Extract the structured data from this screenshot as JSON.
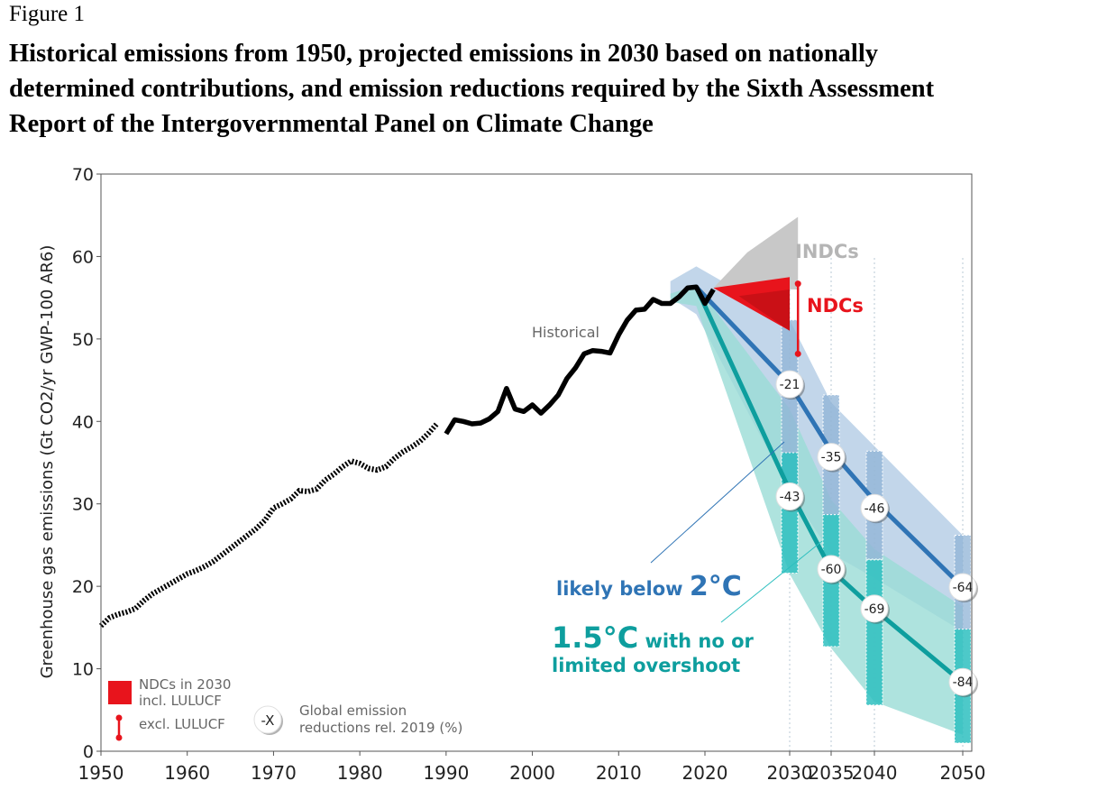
{
  "figure": {
    "label": "Figure 1",
    "title_lines": [
      "Historical emissions from 1950, projected emissions in 2030 based on nationally",
      "determined contributions, and emission reductions required by the Sixth Assessment",
      "Report of the Intergovernmental Panel on Climate Change"
    ]
  },
  "chart_data": {
    "type": "line",
    "title": "",
    "xlabel": "",
    "ylabel": "Greenhouse gas emissions (Gt CO2/yr GWP-100 AR6)",
    "ylim": [
      0,
      70
    ],
    "y_ticks": [
      0,
      10,
      20,
      30,
      40,
      50,
      60,
      70
    ],
    "x_ticks": [
      1950,
      1960,
      1970,
      1980,
      1990,
      2000,
      2010,
      2020,
      2030,
      2035,
      2040,
      2050
    ],
    "grid": false,
    "colors": {
      "historical": "#000000",
      "ndc": "#e8141c",
      "indc": "#c8c8c8",
      "two_degree": "#2f74b5",
      "two_degree_band": "#b7cfe6",
      "one_five": "#0e9e9e",
      "one_five_band": "#9adcd6",
      "box_two": "#8fb3d6",
      "box_one_five": "#2ebfbf"
    },
    "historical_label": "Historical",
    "historical_dotted": {
      "x": [
        1950,
        1951,
        1952,
        1953,
        1954,
        1955,
        1956,
        1957,
        1958,
        1959,
        1960,
        1961,
        1962,
        1963,
        1964,
        1965,
        1966,
        1967,
        1968,
        1969,
        1970,
        1971,
        1972,
        1973,
        1974,
        1975,
        1976,
        1977,
        1978,
        1979,
        1980,
        1981,
        1982,
        1983,
        1984,
        1985,
        1986,
        1987,
        1988,
        1989
      ],
      "y": [
        15.2,
        16.2,
        16.6,
        16.9,
        17.3,
        18.3,
        19.1,
        19.7,
        20.3,
        20.9,
        21.5,
        21.9,
        22.4,
        23.0,
        23.8,
        24.6,
        25.4,
        26.2,
        27.0,
        28.0,
        29.5,
        30.0,
        30.6,
        31.6,
        31.5,
        31.8,
        32.9,
        33.6,
        34.5,
        35.2,
        34.9,
        34.3,
        34.1,
        34.5,
        35.5,
        36.3,
        36.9,
        37.6,
        38.6,
        39.8
      ]
    },
    "historical_solid": {
      "x": [
        1990,
        1991,
        1992,
        1993,
        1994,
        1995,
        1996,
        1997,
        1998,
        1999,
        2000,
        2001,
        2002,
        2003,
        2004,
        2005,
        2006,
        2007,
        2008,
        2009,
        2010,
        2011,
        2012,
        2013,
        2014,
        2015,
        2016,
        2017,
        2018,
        2019,
        2020,
        2021
      ],
      "y": [
        38.5,
        40.2,
        40.0,
        39.7,
        39.8,
        40.3,
        41.2,
        44.0,
        41.5,
        41.2,
        42.0,
        41.0,
        42.0,
        43.2,
        45.2,
        46.5,
        48.2,
        48.6,
        48.5,
        48.3,
        50.5,
        52.3,
        53.5,
        53.6,
        54.8,
        54.3,
        54.3,
        55.1,
        56.2,
        56.3,
        54.3,
        56.0
      ]
    },
    "indc": {
      "label": "INDCs",
      "upper": [
        [
          2021,
          56.2
        ],
        [
          2025,
          60.5
        ],
        [
          2031,
          64.8
        ]
      ],
      "lower": [
        [
          2021,
          56.2
        ],
        [
          2031,
          56.0
        ]
      ]
    },
    "ndc": {
      "label": "NDCs",
      "band": {
        "x_start": 2021,
        "start_value": 56.2,
        "x_end": 2030,
        "top": 57.5,
        "bottom": 51.0
      },
      "range_excl_lulucf": {
        "x": 2031,
        "low": 48.2,
        "high": 56.7
      }
    },
    "series": [
      {
        "name": "likely below 2°C",
        "label_main": "likely below ",
        "label_big": "2°C",
        "x": [
          2019,
          2030,
          2035,
          2040,
          2050
        ],
        "y": [
          56.3,
          44.5,
          36.4,
          30.4,
          19.9
        ],
        "band_upper": [
          [
            2016,
            57.0
          ],
          [
            2019,
            58.8
          ],
          [
            2030,
            52.3
          ],
          [
            2035,
            42.3
          ],
          [
            2040,
            37.0
          ],
          [
            2050,
            26.2
          ]
        ],
        "band_lower": [
          [
            2016,
            55.0
          ],
          [
            2019,
            53.0
          ],
          [
            2030,
            31.5
          ],
          [
            2035,
            24.0
          ],
          [
            2040,
            21.0
          ],
          [
            2050,
            14.5
          ]
        ],
        "boxes": [
          {
            "x": 2030,
            "top": 52.3,
            "bottom": 31.5
          },
          {
            "x": 2035,
            "top": 43.2,
            "bottom": 28.6
          },
          {
            "x": 2040,
            "top": 36.4,
            "bottom": 23.3
          },
          {
            "x": 2050,
            "top": 26.2,
            "bottom": 14.7
          }
        ],
        "reductions": [
          {
            "x": 2030,
            "y": 44.5,
            "text": "-21"
          },
          {
            "x": 2035,
            "y": 35.7,
            "text": "-35"
          },
          {
            "x": 2040,
            "y": 29.5,
            "text": "-46"
          },
          {
            "x": 2050,
            "y": 19.9,
            "text": "-64"
          }
        ]
      },
      {
        "name": "1.5°C with no or limited overshoot",
        "label_big": "1.5°C",
        "label_line1": " with no or",
        "label_line2": "limited overshoot",
        "x": [
          2019,
          2030,
          2035,
          2040,
          2050
        ],
        "y": [
          56.3,
          31.6,
          22.0,
          17.2,
          8.3
        ],
        "band_upper": [
          [
            2016,
            55.5
          ],
          [
            2019,
            56.5
          ],
          [
            2030,
            41.5
          ],
          [
            2035,
            30.5
          ],
          [
            2040,
            24.5
          ],
          [
            2050,
            17.5
          ]
        ],
        "band_lower": [
          [
            2016,
            54.5
          ],
          [
            2019,
            54.0
          ],
          [
            2030,
            21.5
          ],
          [
            2035,
            12.5
          ],
          [
            2040,
            6.0
          ],
          [
            2050,
            2.0
          ]
        ],
        "boxes": [
          {
            "x": 2030,
            "top": 36.2,
            "bottom": 21.6
          },
          {
            "x": 2035,
            "top": 28.7,
            "bottom": 12.7
          },
          {
            "x": 2040,
            "top": 23.2,
            "bottom": 5.6
          },
          {
            "x": 2050,
            "top": 14.8,
            "bottom": 1.0
          }
        ],
        "reductions": [
          {
            "x": 2030,
            "y": 30.9,
            "text": "-43"
          },
          {
            "x": 2035,
            "y": 22.1,
            "text": "-60"
          },
          {
            "x": 2040,
            "y": 17.3,
            "text": "-69"
          },
          {
            "x": 2050,
            "y": 8.4,
            "text": "-84"
          }
        ]
      }
    ],
    "legend": {
      "ndc_incl": [
        "NDCs in 2030",
        "incl. LULUCF"
      ],
      "ndc_excl": "excl. LULUCF",
      "reduction_symbol": "-X",
      "reduction_desc": [
        "Global emission",
        "reductions rel. 2019 (%)"
      ]
    }
  }
}
